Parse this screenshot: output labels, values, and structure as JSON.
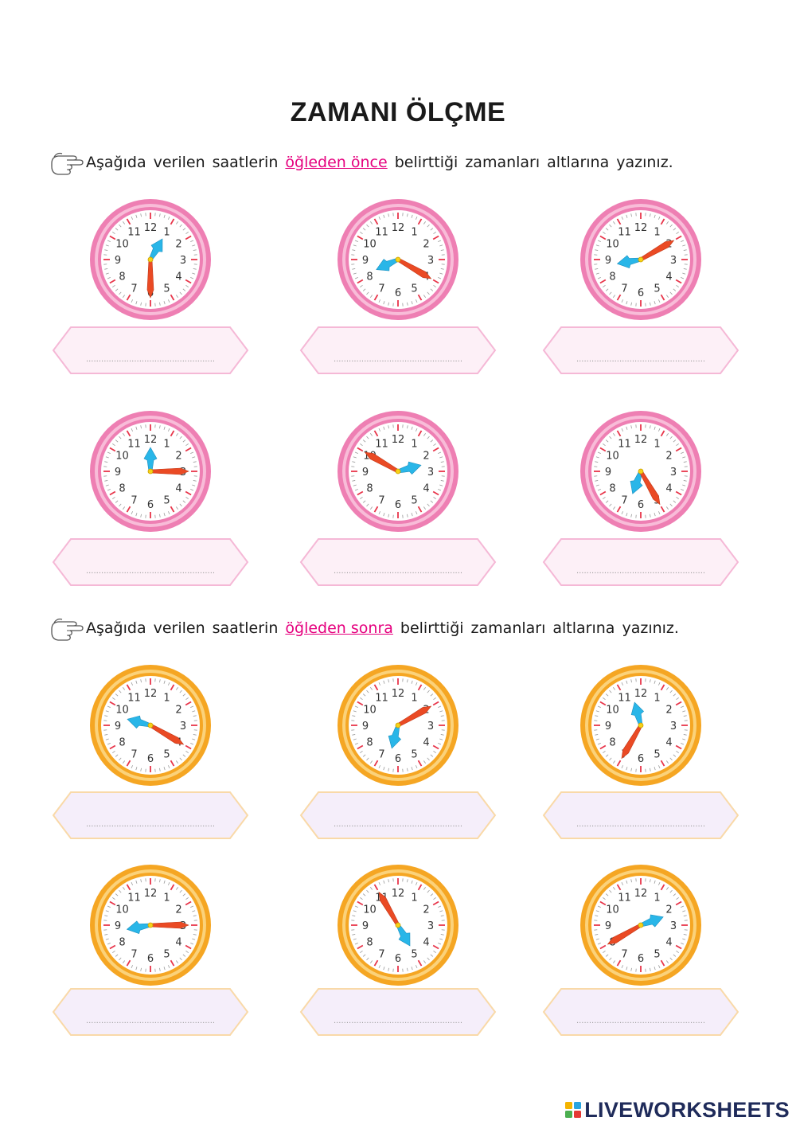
{
  "title": "ZAMANI ÖLÇME",
  "instruction_am": {
    "prefix_words": [
      "Aşağıda",
      "verilen",
      "saatlerin"
    ],
    "highlight": "öğleden önce",
    "suffix_words": [
      "belirttiği",
      "zamanları",
      "altlarına",
      "yazınız."
    ]
  },
  "instruction_pm": {
    "prefix_words": [
      "Aşağıda",
      "verilen",
      "saatlerin"
    ],
    "highlight": "öğleden sonra",
    "suffix_words": [
      "belirttiği",
      "zamanları",
      "altlarına",
      "yazınız."
    ]
  },
  "clock_numbers": [
    "12",
    "1",
    "2",
    "3",
    "4",
    "5",
    "6",
    "7",
    "8",
    "9",
    "10",
    "11"
  ],
  "colors": {
    "am_ring": "#ee7fb3",
    "am_ring_inner": "#f8bcd8",
    "pm_ring": "#f5a623",
    "pm_ring_inner": "#fbd27a",
    "hour_hand": "#29b6e8",
    "minute_hand": "#ea4a24",
    "tick": "#e8354a",
    "am_box_fill": "#fdf0f7",
    "am_box_border": "#f5b8d6",
    "pm_box_fill": "#f5eefa",
    "pm_box_border": "#f9d9a8",
    "highlight": "#e5007e"
  },
  "am_clocks": [
    {
      "hour_angle": 30,
      "minute_angle": 180
    },
    {
      "hour_angle": 245,
      "minute_angle": 120
    },
    {
      "hour_angle": 260,
      "minute_angle": 60
    },
    {
      "hour_angle": 0,
      "minute_angle": 90
    },
    {
      "hour_angle": 75,
      "minute_angle": 300
    },
    {
      "hour_angle": 200,
      "minute_angle": 150
    }
  ],
  "pm_clocks": [
    {
      "hour_angle": 285,
      "minute_angle": 120
    },
    {
      "hour_angle": 195,
      "minute_angle": 60
    },
    {
      "hour_angle": 345,
      "minute_angle": 210
    },
    {
      "hour_angle": 260,
      "minute_angle": 90
    },
    {
      "hour_angle": 150,
      "minute_angle": 330
    },
    {
      "hour_angle": 70,
      "minute_angle": 240
    }
  ],
  "answer_placeholder": "...................................................",
  "logo": {
    "text": "LIVEWORKSHEETS"
  }
}
